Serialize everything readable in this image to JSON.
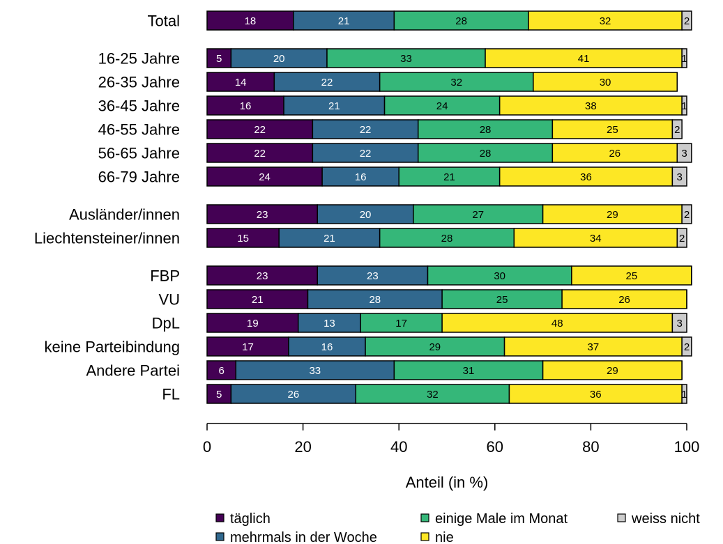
{
  "chart_data": {
    "type": "bar",
    "orientation": "horizontal",
    "stacked": true,
    "xlabel": "Anteil (in %)",
    "xlim": [
      0,
      100
    ],
    "xticks": [
      0,
      20,
      40,
      60,
      80,
      100
    ],
    "legend_position": "bottom",
    "series_colors": [
      "#440154",
      "#31688E",
      "#35B779",
      "#FDE725",
      "#CCCCCC"
    ],
    "series": [
      {
        "name": "täglich",
        "values": [
          18,
          5,
          14,
          16,
          22,
          22,
          24,
          23,
          15,
          23,
          21,
          19,
          17,
          6,
          5
        ]
      },
      {
        "name": "mehrmals in der Woche",
        "values": [
          21,
          20,
          22,
          21,
          22,
          22,
          16,
          20,
          21,
          23,
          28,
          13,
          16,
          33,
          26
        ]
      },
      {
        "name": "einige Male im Monat",
        "values": [
          28,
          33,
          32,
          24,
          28,
          28,
          21,
          27,
          28,
          30,
          25,
          17,
          29,
          31,
          32
        ]
      },
      {
        "name": "nie",
        "values": [
          32,
          41,
          30,
          38,
          25,
          26,
          36,
          29,
          34,
          25,
          26,
          48,
          37,
          29,
          36
        ]
      },
      {
        "name": "weiss nicht",
        "values": [
          2,
          1,
          0,
          1,
          2,
          3,
          3,
          2,
          2,
          0,
          0,
          3,
          2,
          0,
          1
        ]
      }
    ],
    "categories": [
      "Total",
      "16-25 Jahre",
      "26-35 Jahre",
      "36-45 Jahre",
      "46-55 Jahre",
      "56-65 Jahre",
      "66-79 Jahre",
      "Ausländer/innen",
      "Liechtensteiner/innen",
      "FBP",
      "VU",
      "DpL",
      "keine Parteibindung",
      "Andere Partei",
      "FL"
    ],
    "groups": [
      [
        0
      ],
      [
        1,
        2,
        3,
        4,
        5,
        6
      ],
      [
        7,
        8
      ],
      [
        9,
        10,
        11,
        12,
        13,
        14
      ]
    ]
  }
}
